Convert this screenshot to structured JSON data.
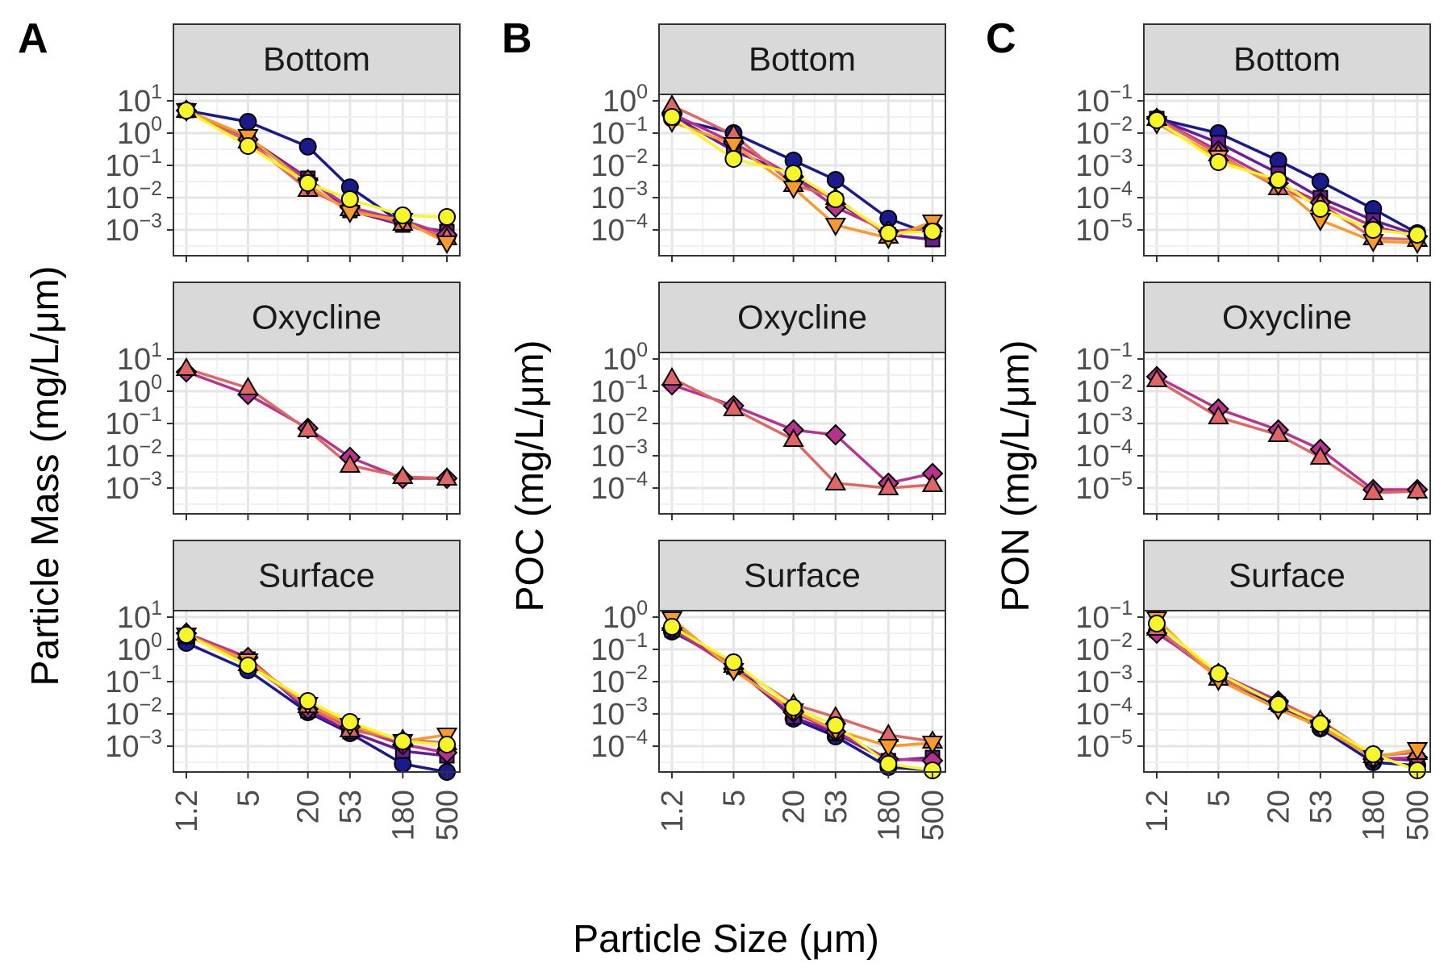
{
  "chart_data": {
    "type": "line",
    "xlabel": "Particle Size (μm)",
    "x_scale": "log",
    "x": [
      1.2,
      5,
      20,
      53,
      180,
      500
    ],
    "x_tick_labels": [
      "1.2",
      "5",
      "20",
      "53",
      "180",
      "500"
    ],
    "rows": [
      "Bottom",
      "Oxycline",
      "Surface"
    ],
    "series_styles": [
      {
        "name": "series-1",
        "color": "#1a1a8c",
        "marker": "circle"
      },
      {
        "name": "series-2",
        "color": "#6a1b9a",
        "marker": "square"
      },
      {
        "name": "series-3",
        "color": "#b83290",
        "marker": "diamond"
      },
      {
        "name": "series-4",
        "color": "#e06666",
        "marker": "triangle-up"
      },
      {
        "name": "series-5",
        "color": "#f89a2c",
        "marker": "triangle-down"
      },
      {
        "name": "series-6",
        "color": "#f5f52a",
        "marker": "circle"
      }
    ],
    "panels": [
      {
        "letter": "A",
        "ylabel": "Particle Mass (mg/L/μm)",
        "y_scale": "log",
        "y_ticks": [
          {
            "base": "10",
            "exp": "1",
            "value": 1
          },
          {
            "base": "10",
            "exp": "0",
            "value": 0
          },
          {
            "base": "10",
            "exp": "−1",
            "value": -1
          },
          {
            "base": "10",
            "exp": "−2",
            "value": -2
          },
          {
            "base": "10",
            "exp": "−3",
            "value": -3
          }
        ],
        "ylim_log10": [
          -3.8,
          1.2
        ],
        "facets": {
          "Bottom": [
            {
              "style": 0,
              "log10_values": [
                0.7,
                0.35,
                -0.42,
                -1.68,
                -2.8,
                -3.25
              ]
            },
            {
              "style": 1,
              "log10_values": [
                0.7,
                -0.15,
                -1.4,
                -2.4,
                -2.85,
                -3.05
              ]
            },
            {
              "style": 2,
              "log10_values": [
                0.7,
                -0.2,
                -1.45,
                -2.3,
                -2.7,
                -3.15
              ]
            },
            {
              "style": 3,
              "log10_values": [
                0.7,
                -0.25,
                -1.75,
                -2.35,
                -2.8,
                -3.25
              ]
            },
            {
              "style": 4,
              "log10_values": [
                0.7,
                -0.1,
                -1.6,
                -2.45,
                -2.7,
                -3.4
              ]
            },
            {
              "style": 5,
              "log10_values": [
                0.7,
                -0.4,
                -1.55,
                -2.05,
                -2.55,
                -2.6
              ]
            }
          ],
          "Oxycline": [
            {
              "style": 2,
              "log10_values": [
                0.6,
                -0.1,
                -1.15,
                -2.05,
                -2.7,
                -2.7
              ]
            },
            {
              "style": 3,
              "log10_values": [
                0.7,
                0.1,
                -1.2,
                -2.3,
                -2.65,
                -2.7
              ]
            }
          ],
          "Surface": [
            {
              "style": 0,
              "log10_values": [
                0.2,
                -0.65,
                -1.95,
                -2.6,
                -3.55,
                -3.8
              ]
            },
            {
              "style": 1,
              "log10_values": [
                0.4,
                -0.3,
                -1.9,
                -2.55,
                -3.15,
                -3.3
              ]
            },
            {
              "style": 2,
              "log10_values": [
                0.5,
                -0.25,
                -1.85,
                -2.4,
                -2.95,
                -3.2
              ]
            },
            {
              "style": 3,
              "log10_values": [
                0.5,
                -0.45,
                -1.75,
                -2.5,
                -2.8,
                -2.9
              ]
            },
            {
              "style": 4,
              "log10_values": [
                0.45,
                -0.35,
                -1.7,
                -2.35,
                -2.85,
                -2.65
              ]
            },
            {
              "style": 5,
              "log10_values": [
                0.45,
                -0.5,
                -1.6,
                -2.25,
                -2.85,
                -2.95
              ]
            }
          ]
        }
      },
      {
        "letter": "B",
        "ylabel": "POC (mg/L/μm)",
        "y_scale": "log",
        "y_ticks": [
          {
            "base": "10",
            "exp": "0",
            "value": 0
          },
          {
            "base": "10",
            "exp": "−1",
            "value": -1
          },
          {
            "base": "10",
            "exp": "−2",
            "value": -2
          },
          {
            "base": "10",
            "exp": "−3",
            "value": -3
          },
          {
            "base": "10",
            "exp": "−4",
            "value": -4
          }
        ],
        "ylim_log10": [
          -4.8,
          0.2
        ],
        "facets": {
          "Bottom": [
            {
              "style": 0,
              "log10_values": [
                -0.55,
                -1.0,
                -1.85,
                -2.45,
                -3.65,
                -4.15
              ]
            },
            {
              "style": 1,
              "log10_values": [
                -0.45,
                -1.55,
                -2.3,
                -3.1,
                -4.15,
                -4.3
              ]
            },
            {
              "style": 2,
              "log10_values": [
                -0.4,
                -1.3,
                -2.35,
                -3.3,
                -4.05,
                -3.95
              ]
            },
            {
              "style": 3,
              "log10_values": [
                -0.15,
                -1.05,
                -2.6,
                -3.0,
                -4.2,
                -3.85
              ]
            },
            {
              "style": 4,
              "log10_values": [
                -0.65,
                -1.35,
                -2.7,
                -3.85,
                -4.25,
                -3.75
              ]
            },
            {
              "style": 5,
              "log10_values": [
                -0.5,
                -1.8,
                -2.25,
                -3.05,
                -4.1,
                -4.05
              ]
            }
          ],
          "Oxycline": [
            {
              "style": 2,
              "log10_values": [
                -0.8,
                -1.45,
                -2.2,
                -2.35,
                -3.85,
                -3.55
              ]
            },
            {
              "style": 3,
              "log10_values": [
                -0.6,
                -1.55,
                -2.5,
                -3.85,
                -4.0,
                -3.9
              ]
            }
          ],
          "Surface": [
            {
              "style": 0,
              "log10_values": [
                -0.45,
                -1.45,
                -3.15,
                -3.7,
                -4.65,
                -4.75
              ]
            },
            {
              "style": 1,
              "log10_values": [
                -0.4,
                -1.55,
                -3.1,
                -3.6,
                -4.45,
                -4.35
              ]
            },
            {
              "style": 2,
              "log10_values": [
                -0.35,
                -1.6,
                -2.95,
                -3.55,
                -4.4,
                -4.45
              ]
            },
            {
              "style": 3,
              "log10_values": [
                -0.2,
                -1.5,
                -2.7,
                -3.1,
                -3.65,
                -3.85
              ]
            },
            {
              "style": 4,
              "log10_values": [
                -0.05,
                -1.65,
                -2.9,
                -3.5,
                -4.0,
                -3.9
              ]
            },
            {
              "style": 5,
              "log10_values": [
                -0.3,
                -1.4,
                -2.8,
                -3.35,
                -4.55,
                -4.75
              ]
            }
          ]
        }
      },
      {
        "letter": "C",
        "ylabel": "PON (mg/L/μm)",
        "y_scale": "log",
        "y_ticks": [
          {
            "base": "10",
            "exp": "−1",
            "value": -1
          },
          {
            "base": "10",
            "exp": "−2",
            "value": -2
          },
          {
            "base": "10",
            "exp": "−3",
            "value": -3
          },
          {
            "base": "10",
            "exp": "−4",
            "value": -4
          },
          {
            "base": "10",
            "exp": "−5",
            "value": -5
          }
        ],
        "ylim_log10": [
          -5.8,
          -0.8
        ],
        "facets": {
          "Bottom": [
            {
              "style": 0,
              "log10_values": [
                -1.55,
                -2.0,
                -2.85,
                -3.5,
                -4.35,
                -5.1
              ]
            },
            {
              "style": 1,
              "log10_values": [
                -1.55,
                -2.3,
                -3.25,
                -4.0,
                -4.7,
                -5.15
              ]
            },
            {
              "style": 2,
              "log10_values": [
                -1.55,
                -2.55,
                -3.55,
                -4.15,
                -4.9,
                -5.2
              ]
            },
            {
              "style": 3,
              "log10_values": [
                -1.55,
                -2.65,
                -3.7,
                -4.2,
                -5.25,
                -5.3
              ]
            },
            {
              "style": 4,
              "log10_values": [
                -1.7,
                -2.75,
                -3.6,
                -4.7,
                -5.35,
                -5.4
              ]
            },
            {
              "style": 5,
              "log10_values": [
                -1.6,
                -2.9,
                -3.45,
                -4.35,
                -5.0,
                -5.15
              ]
            }
          ],
          "Oxycline": [
            {
              "style": 2,
              "log10_values": [
                -1.55,
                -2.55,
                -3.2,
                -3.8,
                -5.05,
                -5.05
              ]
            },
            {
              "style": 3,
              "log10_values": [
                -1.65,
                -2.8,
                -3.35,
                -4.05,
                -5.15,
                -5.1
              ]
            }
          ],
          "Surface": [
            {
              "style": 0,
              "log10_values": [
                -1.45,
                -2.85,
                -3.75,
                -4.45,
                -5.5,
                -5.6
              ]
            },
            {
              "style": 1,
              "log10_values": [
                -1.4,
                -2.8,
                -3.7,
                -4.35,
                -5.35,
                -5.45
              ]
            },
            {
              "style": 2,
              "log10_values": [
                -1.5,
                -2.75,
                -3.6,
                -4.25,
                -5.4,
                -5.35
              ]
            },
            {
              "style": 3,
              "log10_values": [
                -1.35,
                -2.9,
                -3.65,
                -4.2,
                -5.3,
                -5.2
              ]
            },
            {
              "style": 4,
              "log10_values": [
                -1.05,
                -2.95,
                -3.85,
                -4.4,
                -5.35,
                -5.1
              ]
            },
            {
              "style": 5,
              "log10_values": [
                -1.2,
                -2.75,
                -3.7,
                -4.3,
                -5.25,
                -5.75
              ]
            }
          ]
        }
      }
    ]
  }
}
